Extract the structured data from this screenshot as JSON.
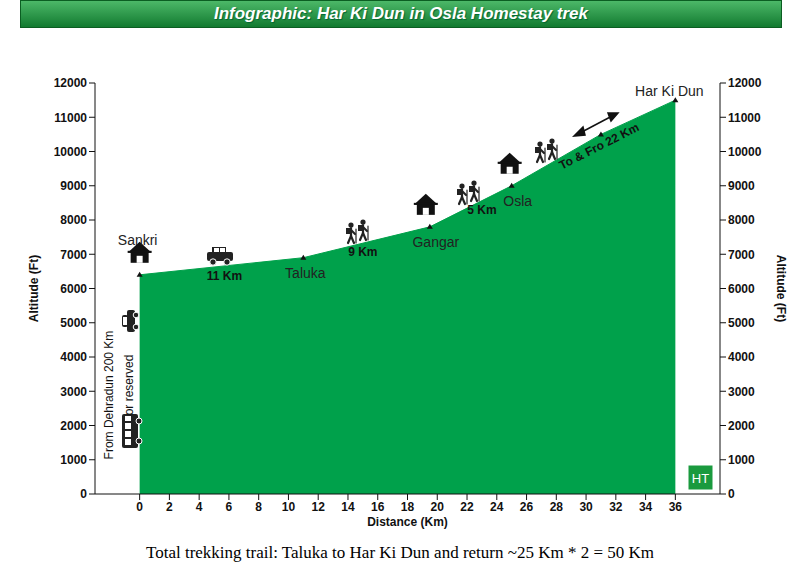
{
  "chart_data": {
    "type": "area",
    "title": "Infographic: Har Ki Dun in Osla Homestay trek",
    "x_label": "Distance (Km)",
    "y_label": "Altitude (Ft)",
    "y2_label": "Altitude (Ft)",
    "x": [
      0,
      11,
      19.5,
      25,
      31,
      36
    ],
    "values": [
      6400,
      6900,
      7800,
      9000,
      10500,
      11500
    ],
    "point_labels": [
      "Sankri",
      "Taluka",
      "Gangar",
      "Osla",
      null,
      "Har Ki Dun"
    ],
    "color": "#00a14b",
    "xlim": [
      -3,
      39
    ],
    "xticks": [
      0,
      2,
      4,
      6,
      8,
      10,
      12,
      14,
      16,
      18,
      20,
      22,
      24,
      26,
      28,
      30,
      32,
      34,
      36
    ],
    "ylim": [
      0,
      12000
    ],
    "yticks": [
      0,
      1000,
      2000,
      3000,
      4000,
      5000,
      6000,
      7000,
      8000,
      9000,
      10000,
      11000,
      12000
    ],
    "y2lim": [
      0,
      12000
    ],
    "y2ticks": [
      0,
      1000,
      2000,
      3000,
      4000,
      5000,
      6000,
      7000,
      8000,
      9000,
      10000,
      11000,
      12000
    ],
    "annotations": [
      "11 Km",
      "9 Km",
      "5 Km",
      "To & Fro 22 Km"
    ],
    "side_note": [
      "From Dehradun 200 Km",
      "or reserved"
    ],
    "footer": "Total trekking trail: Taluka to Har Ki Dun and return ~25 Km * 2 = 50 Km",
    "badge": "HT",
    "grid": false
  }
}
